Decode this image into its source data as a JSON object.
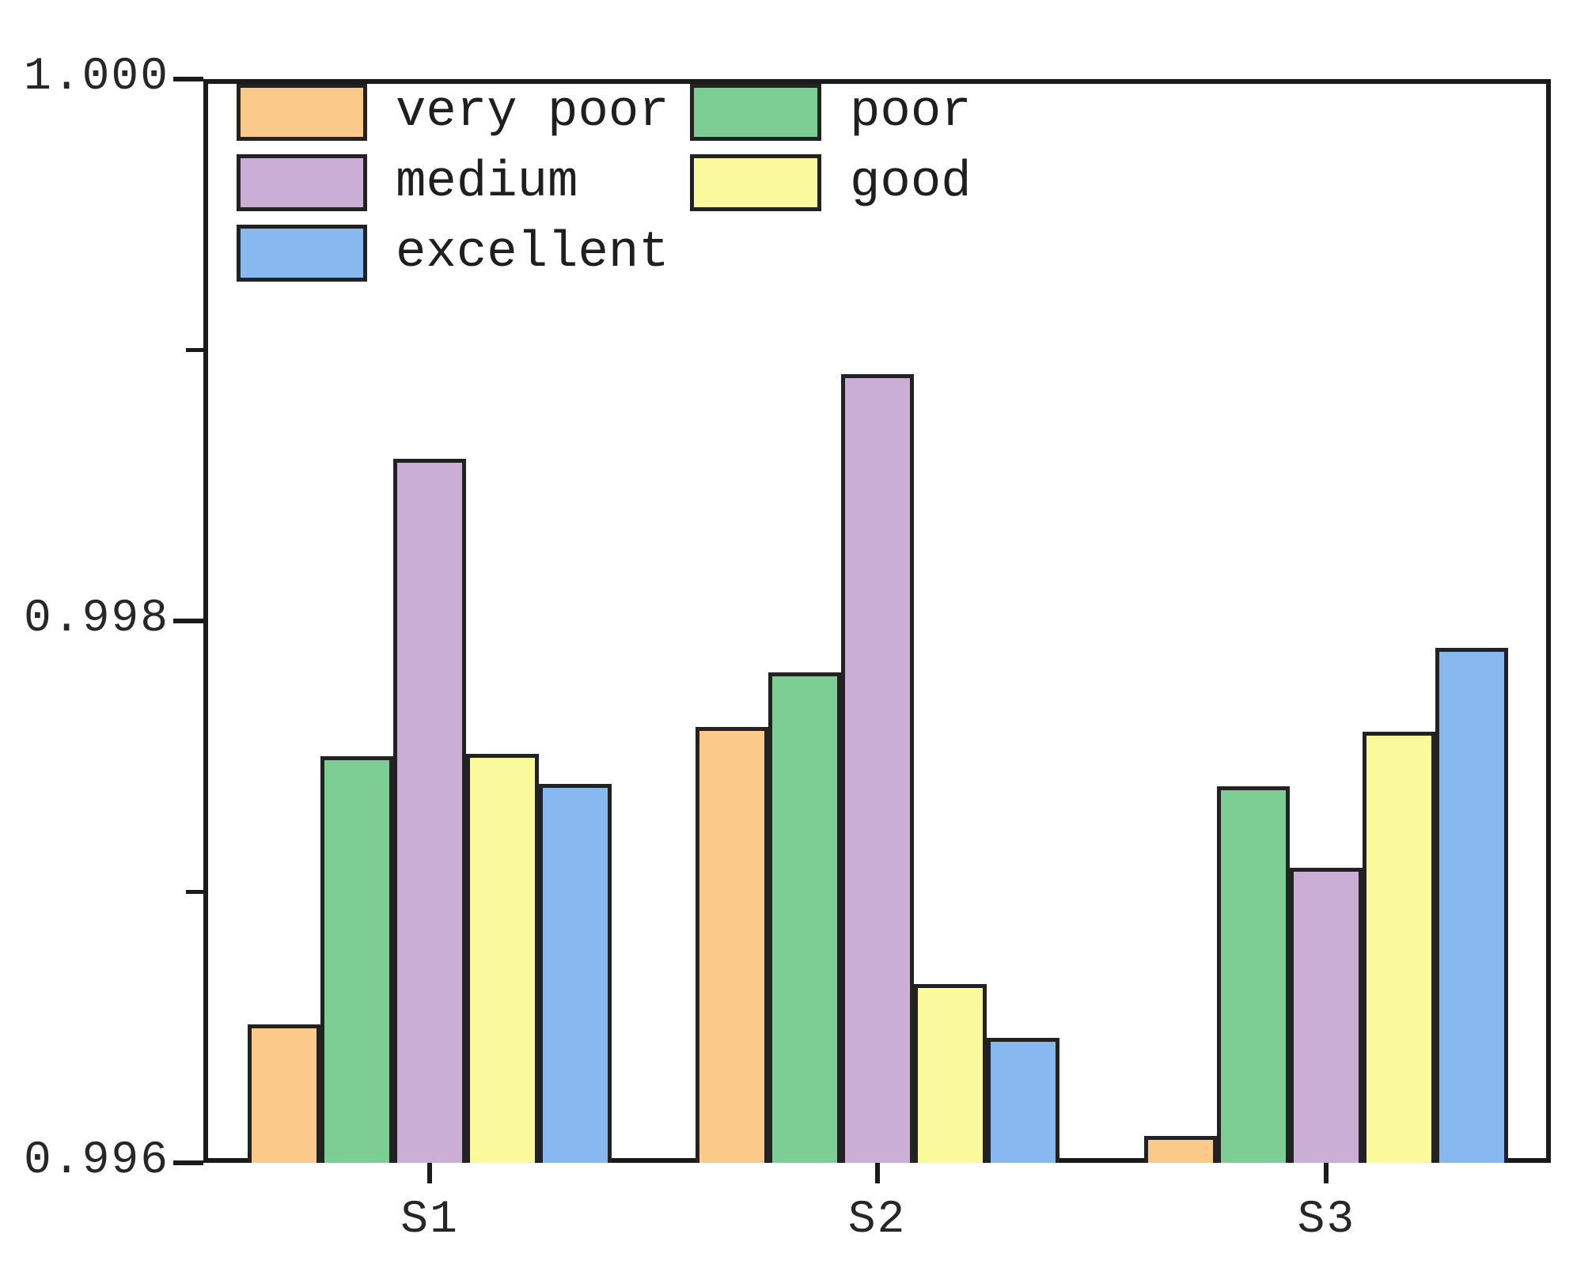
{
  "chart_data": {
    "type": "bar",
    "title": "",
    "xlabel": "",
    "ylabel": "",
    "categories": [
      "S1",
      "S2",
      "S3"
    ],
    "series": [
      {
        "name": "very poor",
        "color": "#FBCA8B",
        "values": [
          0.99651,
          0.99761,
          0.9961
        ]
      },
      {
        "name": "poor",
        "color": "#7CCE95",
        "values": [
          0.9975,
          0.99781,
          0.99739
        ]
      },
      {
        "name": "medium",
        "color": "#CBAED5",
        "values": [
          0.9986,
          0.99891,
          0.99709
        ]
      },
      {
        "name": "good",
        "color": "#FAF99B",
        "values": [
          0.99751,
          0.99666,
          0.99759
        ]
      },
      {
        "name": "excellent",
        "color": "#87B9F0",
        "values": [
          0.9974,
          0.99646,
          0.9979
        ]
      }
    ],
    "ylim": [
      0.996,
      1.0
    ],
    "yticks": [
      {
        "value": 0.996,
        "label": "0.996"
      },
      {
        "value": 0.998,
        "label": "0.998"
      },
      {
        "value": 1.0,
        "label": "1.000"
      }
    ],
    "yticks_minor": [
      0.997,
      0.999
    ],
    "legend_position": "top-left",
    "legend_columns": 2,
    "grid": false,
    "axis_color": "#1a1a1a",
    "bar_edge_color": "#222222",
    "text_color": "#26262b",
    "background": "#ffffff"
  }
}
